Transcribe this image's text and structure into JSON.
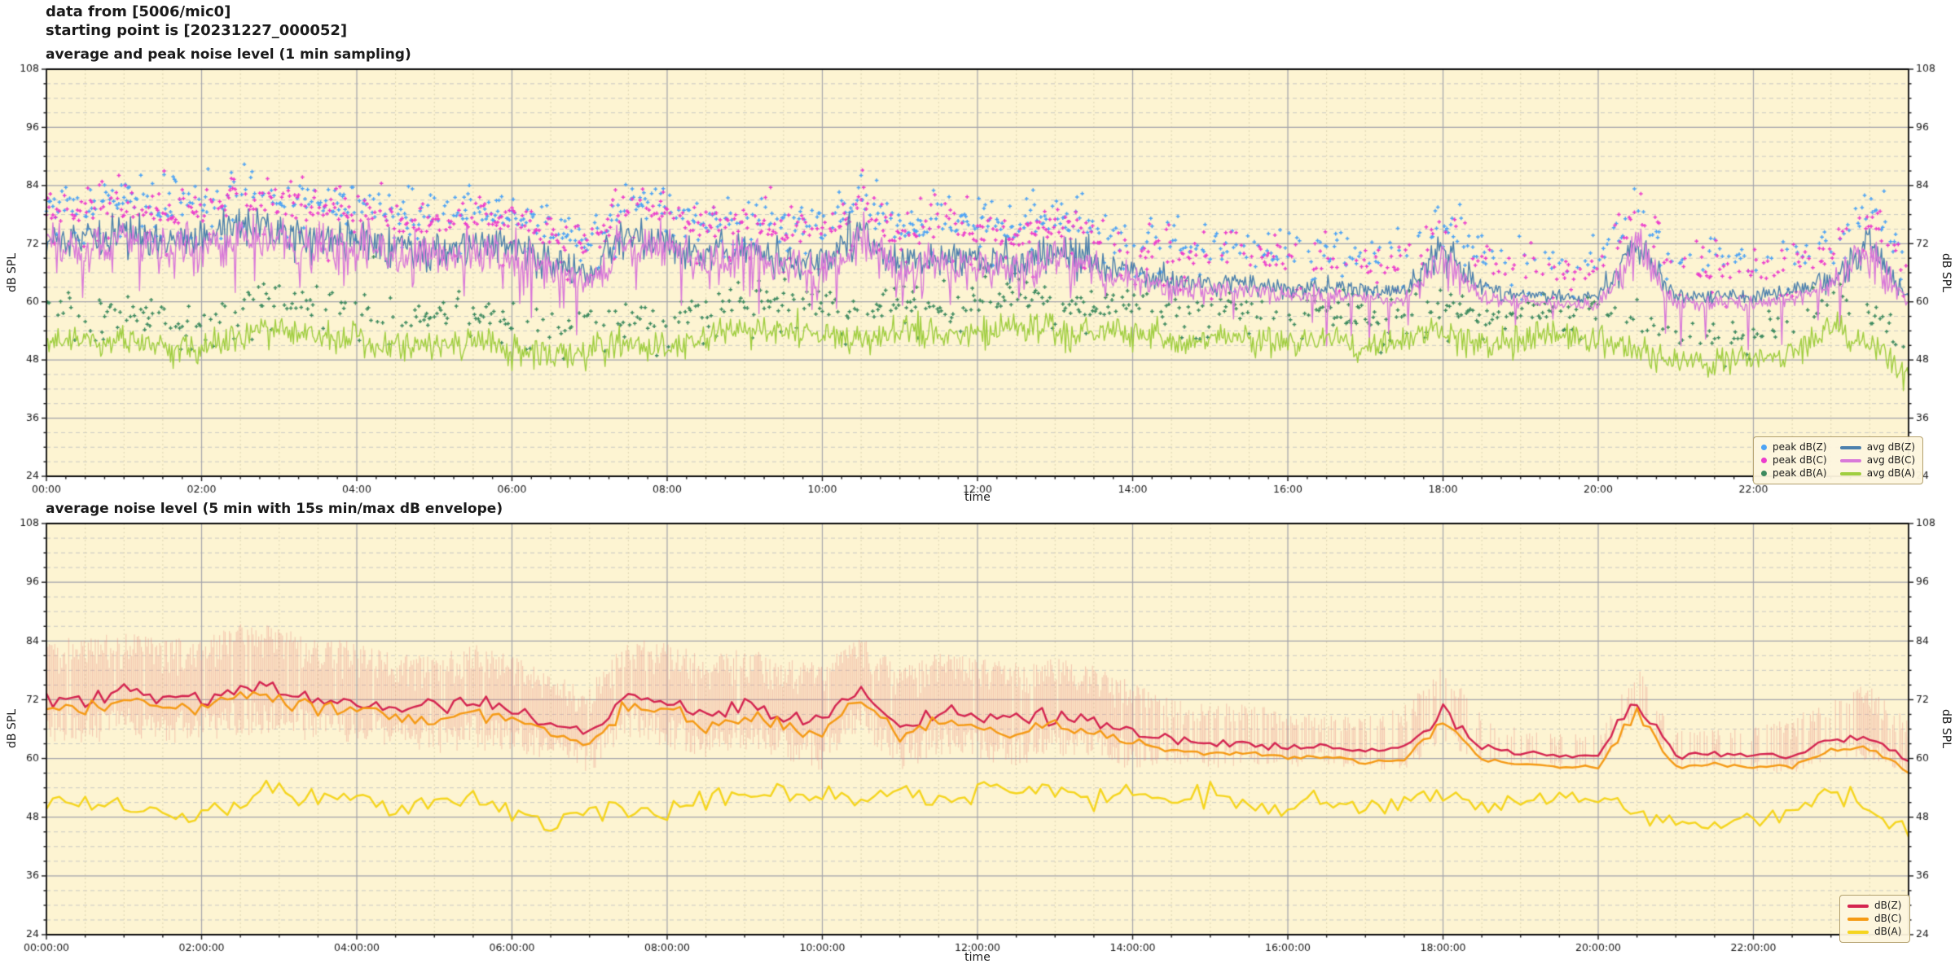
{
  "header": {
    "line1": "data from [5006/mic0]",
    "line2": "starting point is [20231227_000052]"
  },
  "colors": {
    "plot_background": "#fdf4d2",
    "grid_major": "#a3a3ab",
    "grid_minor_h": "#c9c9c4",
    "grid_minor_v": "#ddd5b2",
    "spine": "#0a0a0a",
    "avg_dBZ": "#4c80ad",
    "avg_dBC": "#d979d9",
    "avg_dBA": "#a0ce40",
    "peak_dBZ": "#4da3f5",
    "peak_dBC": "#ec3ccd",
    "peak_dBA": "#3d8a5f",
    "env_dBZ": "#e98c82",
    "bot_dBZ": "#d42450",
    "bot_dBC": "#f59a15",
    "bot_dBA": "#f5d51e"
  },
  "chart_data": [
    {
      "id": "top",
      "type": "line",
      "title": "average and peak noise level (1 min sampling)",
      "xlabel": "time",
      "ylabel": "dB SPL",
      "ylabel_right": "dB SPL",
      "ylim": [
        24,
        108
      ],
      "yticks": [
        24,
        36,
        48,
        60,
        72,
        84,
        96,
        108
      ],
      "ytick_minor_step": 3,
      "xlim_hours": [
        0,
        24
      ],
      "xtick_hours": [
        0,
        2,
        4,
        6,
        8,
        10,
        12,
        14,
        16,
        18,
        20,
        22
      ],
      "xtick_labels": [
        "00:00",
        "02:00",
        "04:00",
        "06:00",
        "08:00",
        "10:00",
        "12:00",
        "14:00",
        "16:00",
        "18:00",
        "20:00",
        "22:00"
      ],
      "grid": {
        "major": true,
        "minor": true
      },
      "sampling_minutes": 1,
      "anchor_step_hours": 0.5,
      "series": [
        {
          "name": "avg dB(Z)",
          "color_key": "avg_dBZ",
          "noise_amp": 2.9,
          "anchors": [
            73.5,
            72.5,
            74,
            72.5,
            73,
            75,
            74.5,
            72.5,
            73,
            71,
            70.5,
            72,
            71,
            68,
            65.5,
            74,
            72.5,
            69.5,
            71,
            69,
            68,
            74.5,
            67,
            70,
            69,
            68,
            70,
            68.5,
            66,
            64.5,
            63.5,
            64,
            62.5,
            63,
            62,
            62.5,
            70,
            62.5,
            61.5,
            61,
            61,
            72.5,
            61,
            61.5,
            61,
            62,
            64.5,
            72,
            60.5
          ]
        },
        {
          "name": "avg dB(C)",
          "color_key": "avg_dBC",
          "noise_amp": 3.3,
          "dip_p": 0.035,
          "dip_amp": 7,
          "anchors": [
            72,
            71,
            72.5,
            71,
            71.5,
            73.5,
            73,
            71,
            71.5,
            69.5,
            69,
            70.5,
            69.5,
            66.5,
            64,
            72.5,
            71,
            68,
            69.5,
            67.5,
            66.5,
            73,
            65.5,
            68.5,
            67.5,
            66.5,
            68.5,
            67,
            64.5,
            63,
            62,
            62.5,
            61,
            61.5,
            60.5,
            61,
            68.5,
            61,
            60,
            59.5,
            59.5,
            71,
            59.5,
            60,
            59.5,
            60.5,
            63,
            70.5,
            59
          ]
        },
        {
          "name": "avg dB(A)",
          "color_key": "avg_dBA",
          "noise_amp": 2.3,
          "anchors": [
            52.5,
            51.5,
            52,
            50.5,
            50,
            53,
            55,
            52.5,
            53,
            50.5,
            51,
            52,
            50,
            48.5,
            50,
            51,
            50,
            52.5,
            54.5,
            54,
            53,
            52,
            54,
            53,
            54,
            55,
            54,
            53,
            54,
            52,
            53,
            52,
            51,
            52.5,
            50.5,
            52,
            54,
            51,
            52,
            53,
            52,
            50,
            47.5,
            47,
            48,
            49,
            55,
            51,
            45
          ]
        }
      ],
      "scatter": [
        {
          "name": "peak dB(Z)",
          "color_key": "peak_dBZ",
          "base_series": 0,
          "offset": 5,
          "spread": 4.5,
          "density_breaks": [
            13.5,
            16
          ],
          "density_values": [
            0.72,
            0.5,
            0.4
          ]
        },
        {
          "name": "peak dB(C)",
          "color_key": "peak_dBC",
          "base_series": 1,
          "offset": 5,
          "spread": 4.5,
          "density_breaks": [
            13.5,
            16
          ],
          "density_values": [
            0.7,
            0.48,
            0.38
          ]
        },
        {
          "name": "peak dB(A)",
          "color_key": "peak_dBA",
          "base_series": 2,
          "offset": 4,
          "spread": 3.8,
          "density_breaks": [
            20
          ],
          "density_values": [
            0.5,
            0.36
          ]
        }
      ],
      "legend": {
        "position": "lower right",
        "entries": [
          {
            "label": "peak dB(Z)",
            "marker": "dot",
            "color_key": "peak_dBZ"
          },
          {
            "label": "peak dB(C)",
            "marker": "dot",
            "color_key": "peak_dBC"
          },
          {
            "label": "peak dB(A)",
            "marker": "dot",
            "color_key": "peak_dBA"
          },
          {
            "label": "avg dB(Z)",
            "marker": "line",
            "color_key": "avg_dBZ"
          },
          {
            "label": "avg dB(C)",
            "marker": "line",
            "color_key": "avg_dBC"
          },
          {
            "label": "avg dB(A)",
            "marker": "line",
            "color_key": "avg_dBA"
          }
        ]
      }
    },
    {
      "id": "bottom",
      "type": "line",
      "title": "average noise level (5 min with 15s min/max dB envelope)",
      "xlabel": "time",
      "ylabel": "dB SPL",
      "ylabel_right": "dB SPL",
      "ylim": [
        24,
        108
      ],
      "yticks": [
        24,
        36,
        48,
        60,
        72,
        84,
        96,
        108
      ],
      "ytick_minor_step": 3,
      "xlim_hours": [
        0,
        24
      ],
      "xtick_hours": [
        0,
        2,
        4,
        6,
        8,
        10,
        12,
        14,
        16,
        18,
        20,
        22
      ],
      "xtick_labels": [
        "00:00:00",
        "02:00:00",
        "04:00:00",
        "06:00:00",
        "08:00:00",
        "10:00:00",
        "12:00:00",
        "14:00:00",
        "16:00:00",
        "18:00:00",
        "20:00:00",
        "22:00:00"
      ],
      "grid": {
        "major": true,
        "minor": true
      },
      "sampling_minutes": 5,
      "anchor_step_hours": 0.5,
      "series": [
        {
          "name": "dB(Z)",
          "color_key": "bot_dBZ",
          "noise_amp": 1.3,
          "anchors": [
            72.5,
            72,
            73.5,
            72,
            72.5,
            74.5,
            74,
            72,
            72.5,
            70.5,
            70,
            71.5,
            70.5,
            67.5,
            65,
            73.5,
            72,
            69,
            70.5,
            68.5,
            67.5,
            74,
            66.5,
            69.5,
            68.5,
            67.5,
            69.5,
            68,
            65.5,
            64,
            63,
            63.5,
            62,
            62.5,
            61.5,
            62,
            69.5,
            62,
            61,
            60.5,
            60.5,
            72,
            60.5,
            61,
            60.5,
            60.5,
            64,
            64.5,
            59.5
          ]
        },
        {
          "name": "dB(C)",
          "color_key": "bot_dBC",
          "noise_amp": 1.3,
          "anchors": [
            70.3,
            69.8,
            71.3,
            69.8,
            70.3,
            72.3,
            71.8,
            69.8,
            70.3,
            68.3,
            67.8,
            69.3,
            68.3,
            65.3,
            62.8,
            71.3,
            69.8,
            66.8,
            68.3,
            66.3,
            65.3,
            71.8,
            64.3,
            67.3,
            66.3,
            65.3,
            67.3,
            65.8,
            63.3,
            61.8,
            60.8,
            61.3,
            59.8,
            60.3,
            59.3,
            59.8,
            67.3,
            59.8,
            58.8,
            58.3,
            58.3,
            69.8,
            58.3,
            58.8,
            58.3,
            58.3,
            61.8,
            62.3,
            57.3
          ]
        },
        {
          "name": "dB(A)",
          "color_key": "bot_dBA",
          "noise_amp": 1.6,
          "anchors": [
            51.5,
            50.5,
            51,
            49.5,
            49,
            52,
            54,
            51.5,
            52,
            49.5,
            50,
            51,
            49,
            47.5,
            49,
            50,
            49,
            51.5,
            53.5,
            53,
            52,
            51,
            53,
            52,
            53,
            54,
            53,
            52,
            53,
            51,
            52,
            51,
            50,
            51.5,
            49.5,
            51,
            53,
            50,
            51,
            52,
            51,
            49,
            46.5,
            46,
            47,
            49,
            54,
            50,
            44
          ]
        }
      ],
      "envelope": {
        "applies_to": "dB(Z)",
        "window_seconds": 15,
        "color_key": "env_dBZ",
        "alpha": 0.42,
        "up": [
          12,
          13,
          12,
          13,
          12,
          13,
          13,
          12,
          12,
          11,
          11,
          12,
          11,
          10,
          10,
          11,
          12,
          12,
          12,
          12,
          12,
          11,
          12,
          12,
          12,
          12,
          11,
          11,
          10,
          8,
          8,
          8,
          7,
          7,
          7,
          9,
          10,
          7,
          5,
          5,
          5,
          7,
          5,
          5,
          6,
          8,
          8,
          11,
          8
        ],
        "dn": [
          9,
          9,
          10,
          9,
          9,
          10,
          9,
          9,
          9,
          8,
          9,
          10,
          9,
          8,
          8,
          9,
          10,
          9,
          9,
          9,
          10,
          9,
          9,
          9,
          9,
          9,
          9,
          8,
          8,
          5,
          5,
          5,
          4,
          4,
          4,
          5,
          6,
          4,
          3,
          3,
          3,
          4,
          3,
          3,
          3,
          4,
          4,
          5,
          4
        ]
      },
      "legend": {
        "position": "lower right",
        "entries": [
          {
            "label": "dB(Z)",
            "marker": "line",
            "color_key": "bot_dBZ"
          },
          {
            "label": "dB(C)",
            "marker": "line",
            "color_key": "bot_dBC"
          },
          {
            "label": "dB(A)",
            "marker": "line",
            "color_key": "bot_dBA"
          }
        ]
      }
    }
  ]
}
